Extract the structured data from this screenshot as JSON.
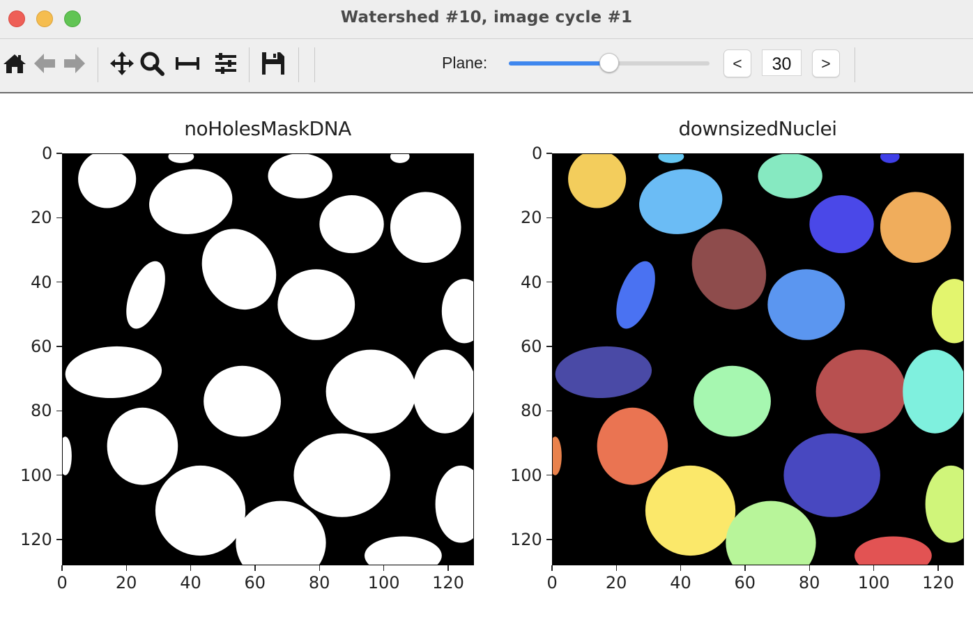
{
  "window": {
    "title": "Watershed #10, image cycle #1"
  },
  "toolbar": {
    "icons": [
      "home-icon",
      "back-arrow-icon",
      "forward-arrow-icon",
      "pan-icon",
      "zoom-icon",
      "subplots-icon",
      "configure-icon",
      "save-icon"
    ],
    "plane_label": "Plane:",
    "plane_value": "30",
    "plane_fraction": 0.5,
    "prev_label": "<",
    "next_label": ">",
    "slider_color": "#3f87ee"
  },
  "plots": [
    {
      "title": "noHolesMaskDNA",
      "colormap": "gray",
      "xlim": [
        0,
        128
      ],
      "ylim": [
        128,
        0
      ],
      "xticks": [
        "0",
        "20",
        "40",
        "60",
        "80",
        "100",
        "120"
      ],
      "yticks": [
        "0",
        "20",
        "40",
        "60",
        "80",
        "100",
        "120"
      ]
    },
    {
      "title": "downsizedNuclei",
      "colormap": "jet",
      "xlim": [
        0,
        128
      ],
      "ylim": [
        128,
        0
      ],
      "xticks": [
        "0",
        "20",
        "40",
        "60",
        "80",
        "100",
        "120"
      ],
      "yticks": [
        "0",
        "20",
        "40",
        "60",
        "80",
        "100",
        "120"
      ]
    }
  ],
  "nuclei": [
    {
      "cx": 14,
      "cy": 8,
      "rx": 9,
      "ry": 9,
      "rot": 0,
      "color": "#f3cd5c"
    },
    {
      "cx": 37,
      "cy": 1,
      "rx": 4,
      "ry": 2,
      "rot": 0,
      "color": "#67c7f1"
    },
    {
      "cx": 74,
      "cy": 7,
      "rx": 10,
      "ry": 7,
      "rot": 0,
      "color": "#86e9c1"
    },
    {
      "cx": 105,
      "cy": 1,
      "rx": 3,
      "ry": 2,
      "rot": 0,
      "color": "#3f3fe8"
    },
    {
      "cx": 40,
      "cy": 15,
      "rx": 13,
      "ry": 10,
      "rot": -10,
      "color": "#6bbcf5"
    },
    {
      "cx": 90,
      "cy": 22,
      "rx": 10,
      "ry": 9,
      "rot": 0,
      "color": "#4a48e8"
    },
    {
      "cx": 113,
      "cy": 23,
      "rx": 11,
      "ry": 11,
      "rot": 10,
      "color": "#f0ad5c"
    },
    {
      "cx": 55,
      "cy": 36,
      "rx": 11,
      "ry": 13,
      "rot": -30,
      "color": "#8e4c4c"
    },
    {
      "cx": 26,
      "cy": 44,
      "rx": 5,
      "ry": 11,
      "rot": 20,
      "color": "#4a72f2"
    },
    {
      "cx": 79,
      "cy": 47,
      "rx": 12,
      "ry": 11,
      "rot": 0,
      "color": "#5b96f0"
    },
    {
      "cx": 125,
      "cy": 49,
      "rx": 7,
      "ry": 10,
      "rot": 0,
      "color": "#e3f56e"
    },
    {
      "cx": 16,
      "cy": 68,
      "rx": 15,
      "ry": 8,
      "rot": -3,
      "color": "#4a4aa6"
    },
    {
      "cx": 56,
      "cy": 77,
      "rx": 12,
      "ry": 11,
      "rot": 0,
      "color": "#a6f7b0"
    },
    {
      "cx": 96,
      "cy": 74,
      "rx": 14,
      "ry": 13,
      "rot": 0,
      "color": "#b85050"
    },
    {
      "cx": 119,
      "cy": 74,
      "rx": 10,
      "ry": 13,
      "rot": 0,
      "color": "#7ff0de"
    },
    {
      "cx": 25,
      "cy": 91,
      "rx": 11,
      "ry": 12,
      "rot": 0,
      "color": "#ea7452"
    },
    {
      "cx": 1,
      "cy": 94,
      "rx": 2,
      "ry": 6,
      "rot": 0,
      "color": "#e9824c"
    },
    {
      "cx": 87,
      "cy": 100,
      "rx": 15,
      "ry": 13,
      "rot": 0,
      "color": "#4848c0"
    },
    {
      "cx": 124,
      "cy": 109,
      "rx": 8,
      "ry": 12,
      "rot": 0,
      "color": "#d0f57a"
    },
    {
      "cx": 43,
      "cy": 111,
      "rx": 14,
      "ry": 14,
      "rot": 0,
      "color": "#fbe86a"
    },
    {
      "cx": 68,
      "cy": 121,
      "rx": 14,
      "ry": 13,
      "rot": 0,
      "color": "#b8f59a"
    },
    {
      "cx": 106,
      "cy": 125,
      "rx": 12,
      "ry": 6,
      "rot": 0,
      "color": "#e25353"
    }
  ]
}
